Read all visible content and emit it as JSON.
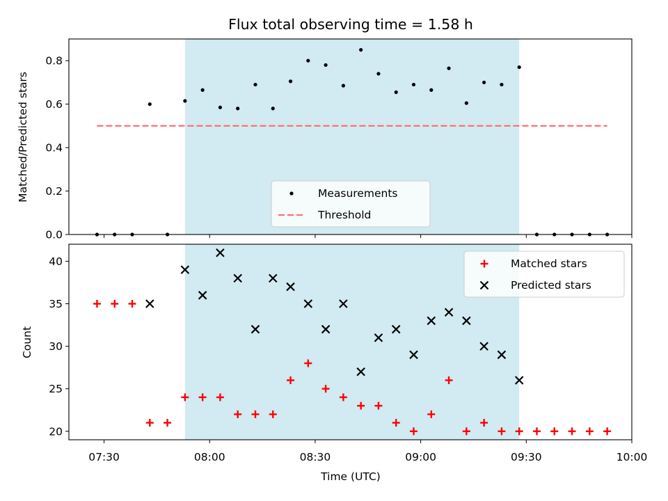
{
  "chart_data": {
    "title": "Flux total observing time = 1.58 h",
    "xlabel": "Time (UTC)",
    "x_ticks": [
      "07:30",
      "08:00",
      "08:30",
      "09:00",
      "09:30",
      "10:00"
    ],
    "x_tick_minutes": [
      450,
      480,
      510,
      540,
      570,
      600
    ],
    "xlim_minutes": [
      440,
      600
    ],
    "shaded_span_minutes": [
      473,
      568
    ],
    "shaded_color": "#add8e6",
    "panels": [
      {
        "type": "scatter",
        "ylabel": "Matched/Predicted stars",
        "ylim": [
          0,
          0.9
        ],
        "y_ticks": [
          "0.0",
          "0.2",
          "0.4",
          "0.6",
          "0.8"
        ],
        "y_tick_values": [
          0,
          0.2,
          0.4,
          0.6,
          0.8
        ],
        "legend_position": "lower center",
        "series": [
          {
            "name": "Measurements",
            "marker": "dot",
            "color": "#000000",
            "x_minutes": [
              448,
              453,
              458,
              463,
              468,
              473,
              478,
              483,
              488,
              493,
              498,
              503,
              508,
              513,
              518,
              523,
              528,
              533,
              538,
              543,
              548,
              553,
              558,
              563,
              568,
              573,
              578,
              583,
              588,
              593
            ],
            "y": [
              0.0,
              0.0,
              0.0,
              0.6,
              0.0,
              0.615,
              0.665,
              0.585,
              0.58,
              0.69,
              0.58,
              0.705,
              0.8,
              0.78,
              0.685,
              0.85,
              0.74,
              0.655,
              0.69,
              0.665,
              0.765,
              0.605,
              0.7,
              0.69,
              0.77,
              0.0,
              0.0,
              0.0,
              0.0,
              0.0
            ]
          },
          {
            "name": "Threshold",
            "style": "dashed",
            "color": "#ff7070",
            "x_minutes": [
              448,
              593
            ],
            "y": [
              0.5,
              0.5
            ]
          }
        ]
      },
      {
        "type": "scatter",
        "ylabel": "Count",
        "ylim": [
          19,
          42
        ],
        "y_ticks": [
          "20",
          "25",
          "30",
          "35",
          "40"
        ],
        "y_tick_values": [
          20,
          25,
          30,
          35,
          40
        ],
        "legend_position": "upper right",
        "series": [
          {
            "name": "Matched stars",
            "marker": "plus",
            "color": "#ff0000",
            "x_minutes": [
              448,
              453,
              458,
              463,
              468,
              473,
              478,
              483,
              488,
              493,
              498,
              503,
              508,
              513,
              518,
              523,
              528,
              533,
              538,
              543,
              548,
              553,
              558,
              563,
              568,
              573,
              578,
              583,
              588,
              593
            ],
            "y": [
              35,
              35,
              35,
              21,
              21,
              24,
              24,
              24,
              22,
              22,
              22,
              26,
              28,
              25,
              24,
              23,
              23,
              21,
              20,
              22,
              26,
              20,
              21,
              20,
              20,
              20,
              20,
              20,
              20,
              20
            ]
          },
          {
            "name": "Predicted stars",
            "marker": "x",
            "color": "#000000",
            "x_minutes": [
              463,
              473,
              478,
              483,
              488,
              493,
              498,
              503,
              508,
              513,
              518,
              523,
              528,
              533,
              538,
              543,
              548,
              553,
              558,
              563,
              568
            ],
            "y": [
              35,
              39,
              36,
              41,
              38,
              32,
              38,
              37,
              35,
              32,
              35,
              27,
              31,
              32,
              29,
              33,
              34,
              33,
              30,
              29,
              26
            ]
          }
        ]
      }
    ]
  }
}
